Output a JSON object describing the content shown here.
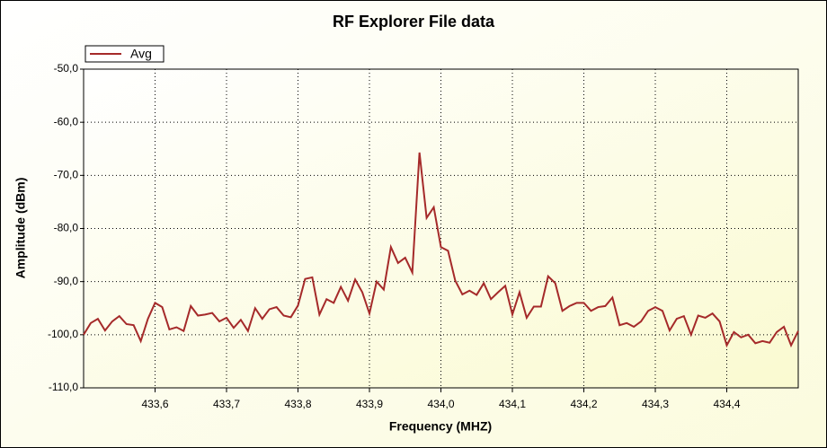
{
  "chart_data": {
    "type": "line",
    "title": "RF Explorer File data",
    "xlabel": "Frequency (MHZ)",
    "ylabel": "Amplitude (dBm)",
    "x": [
      433.5,
      433.51,
      433.52,
      433.53,
      433.54,
      433.55,
      433.56,
      433.57,
      433.58,
      433.59,
      433.6,
      433.61,
      433.62,
      433.63,
      433.64,
      433.65,
      433.66,
      433.67,
      433.68,
      433.69,
      433.7,
      433.71,
      433.72,
      433.73,
      433.74,
      433.75,
      433.76,
      433.77,
      433.78,
      433.79,
      433.8,
      433.81,
      433.82,
      433.83,
      433.84,
      433.85,
      433.86,
      433.87,
      433.88,
      433.89,
      433.9,
      433.91,
      433.92,
      433.93,
      433.94,
      433.95,
      433.96,
      433.97,
      433.98,
      433.99,
      434.0,
      434.01,
      434.02,
      434.03,
      434.04,
      434.05,
      434.06,
      434.07,
      434.08,
      434.09,
      434.1,
      434.11,
      434.12,
      434.13,
      434.14,
      434.15,
      434.16,
      434.17,
      434.18,
      434.19,
      434.2,
      434.21,
      434.22,
      434.23,
      434.24,
      434.25,
      434.26,
      434.27,
      434.28,
      434.29,
      434.3,
      434.31,
      434.32,
      434.33,
      434.34,
      434.35,
      434.36,
      434.37,
      434.38,
      434.39,
      434.4,
      434.41,
      434.42,
      434.43,
      434.44,
      434.45,
      434.46,
      434.47,
      434.48,
      434.49,
      434.5
    ],
    "series": [
      {
        "name": "Avg",
        "color": "#a52a2a",
        "values": [
          -100,
          -97.8,
          -97,
          -99.2,
          -97.5,
          -96.5,
          -98,
          -98.2,
          -101.2,
          -97,
          -94,
          -94.8,
          -99,
          -98.6,
          -99.3,
          -94.6,
          -96.4,
          -96.2,
          -95.9,
          -97.5,
          -96.8,
          -98.7,
          -97.2,
          -99.3,
          -95,
          -97,
          -95.2,
          -94.8,
          -96.4,
          -96.7,
          -94.5,
          -89.5,
          -89.2,
          -96.2,
          -93.3,
          -94,
          -91,
          -93.6,
          -89.6,
          -92,
          -96,
          -90,
          -91.5,
          -83.5,
          -86.5,
          -85.5,
          -88.3,
          -65.7,
          -78,
          -76,
          -83.5,
          -84.2,
          -89.8,
          -92.4,
          -91.7,
          -92.5,
          -90.3,
          -93.3,
          -92,
          -90.8,
          -96.2,
          -92,
          -96.8,
          -94.7,
          -94.7,
          -89,
          -90.3,
          -95.5,
          -94.6,
          -94,
          -94,
          -95.5,
          -94.8,
          -94.6,
          -93,
          -98.2,
          -97.8,
          -98.5,
          -97.5,
          -95.5,
          -94.8,
          -95.5,
          -99.2,
          -97,
          -96.5,
          -100,
          -96.4,
          -96.8,
          -96,
          -97.5,
          -102,
          -99.5,
          -100.5,
          -100,
          -101.6,
          -101.2,
          -101.5,
          -99.5,
          -98.5,
          -102,
          -99.3
        ]
      }
    ],
    "xlim": [
      433.5,
      434.5
    ],
    "xticks": [
      {
        "value": 433.6,
        "label": "433,6"
      },
      {
        "value": 433.7,
        "label": "433,7"
      },
      {
        "value": 433.8,
        "label": "433,8"
      },
      {
        "value": 433.9,
        "label": "433,9"
      },
      {
        "value": 434.0,
        "label": "434,0"
      },
      {
        "value": 434.1,
        "label": "434,1"
      },
      {
        "value": 434.2,
        "label": "434,2"
      },
      {
        "value": 434.3,
        "label": "434,3"
      },
      {
        "value": 434.4,
        "label": "434,4"
      }
    ],
    "ylim": [
      -110,
      -50
    ],
    "yticks": [
      {
        "value": -110,
        "label": "-110,0"
      },
      {
        "value": -100,
        "label": "-100,0"
      },
      {
        "value": -90,
        "label": "-90,0"
      },
      {
        "value": -80,
        "label": "-80,0"
      },
      {
        "value": -70,
        "label": "-70,0"
      },
      {
        "value": -60,
        "label": "-60,0"
      },
      {
        "value": -50,
        "label": "-50,0"
      }
    ],
    "grid": true,
    "legend": "top-left"
  }
}
